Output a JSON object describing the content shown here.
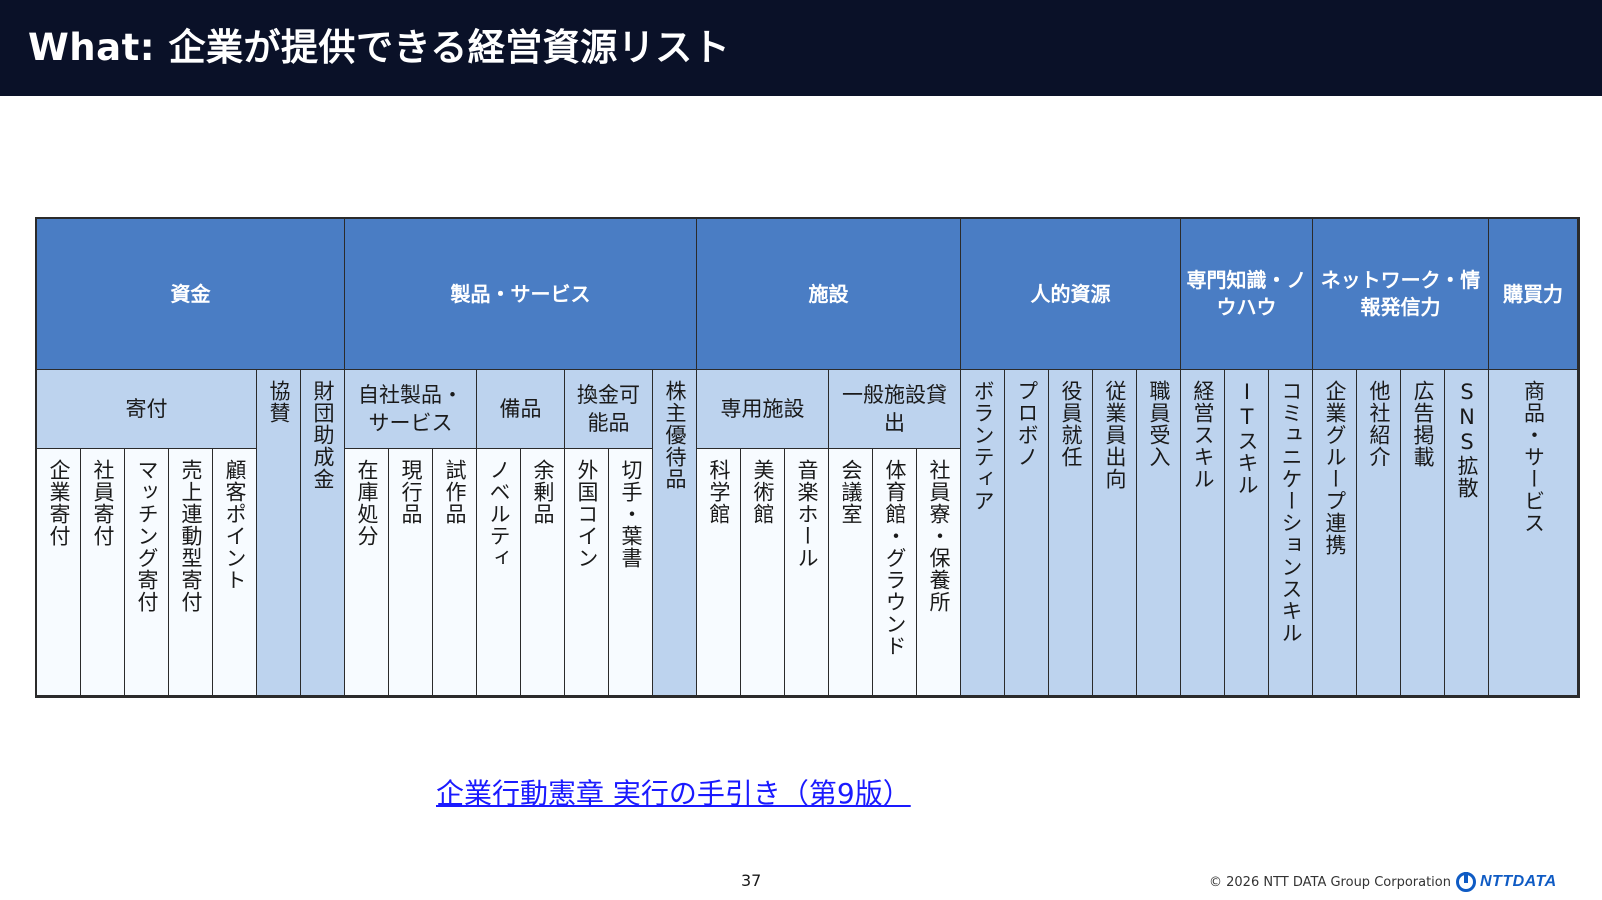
{
  "title": "What: 企業が提供できる経営資源リスト",
  "categories": [
    {
      "label": "資金"
    },
    {
      "label": "製品・サービス"
    },
    {
      "label": "施設"
    },
    {
      "label": "人的資源"
    },
    {
      "label": "専門知識・ノウハウ"
    },
    {
      "label": "ネットワーク・情報発信力"
    },
    {
      "label": "購買力"
    }
  ],
  "groups": [
    {
      "label": "寄付"
    },
    {
      "label": "協賛"
    },
    {
      "label": "財団助成金"
    },
    {
      "label": "自社製品・サービス"
    },
    {
      "label": "備品"
    },
    {
      "label": "換金可能品"
    },
    {
      "label": "株主優待品"
    },
    {
      "label": "専用施設"
    },
    {
      "label": "一般施設貸出"
    },
    {
      "label": "ボランティア"
    },
    {
      "label": "プロボノ"
    },
    {
      "label": "役員就任"
    },
    {
      "label": "従業員出向"
    },
    {
      "label": "職員受入"
    },
    {
      "label": "経営スキル"
    },
    {
      "label": "ITスキル"
    },
    {
      "label": "コミュニケーションスキル"
    },
    {
      "label": "企業グループ連携"
    },
    {
      "label": "他社紹介"
    },
    {
      "label": "広告掲載"
    },
    {
      "label": "SNS拡散"
    },
    {
      "label": "商品・サービス"
    }
  ],
  "items": [
    {
      "label": "企業寄付"
    },
    {
      "label": "社員寄付"
    },
    {
      "label": "マッチング寄付"
    },
    {
      "label": "売上連動型寄付"
    },
    {
      "label": "顧客ポイント"
    },
    {
      "label": "在庫処分"
    },
    {
      "label": "現行品"
    },
    {
      "label": "試作品"
    },
    {
      "label": "ノベルティ"
    },
    {
      "label": "余剰品"
    },
    {
      "label": "外国コイン"
    },
    {
      "label": "切手・葉書"
    },
    {
      "label": "科学館"
    },
    {
      "label": "美術館"
    },
    {
      "label": "音楽ホール"
    },
    {
      "label": "会議室"
    },
    {
      "label": "体育館・グラウンド"
    },
    {
      "label": "社員寮・保養所"
    }
  ],
  "link": {
    "text": "企業行動憲章 実行の手引き（第9版）"
  },
  "page_number": "37",
  "footer": {
    "copyright": "© 2026 NTT DATA Group Corporation",
    "logo_text": "NTTDATA"
  }
}
